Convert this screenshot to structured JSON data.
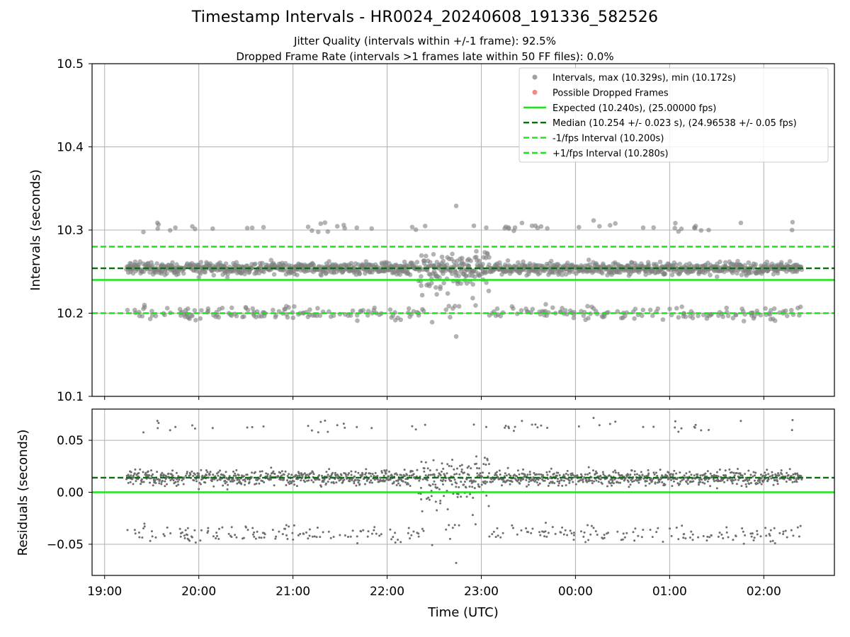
{
  "title": "Timestamp Intervals - HR0024_20240608_191336_582526",
  "subtitle_jitter": "Jitter Quality (intervals within +/-1 frame): 92.5%",
  "subtitle_dropped": "Dropped Frame Rate (intervals >1 frames late within 50 FF files): 0.0%",
  "chart_data": [
    {
      "type": "scatter",
      "panel": "top",
      "xlabel": "",
      "ylabel": "Intervals (seconds)",
      "xlim": [
        "18:52",
        "02:45"
      ],
      "ylim": [
        10.1,
        10.5
      ],
      "yticks": [
        "10.1",
        "10.2",
        "10.3",
        "10.4",
        "10.5"
      ],
      "grid": true,
      "legend_position": "upper right",
      "series": [
        {
          "name": "Intervals, max (10.329s), min (10.172s)",
          "kind": "points",
          "color": "#808080",
          "time_range": [
            "19:14",
            "02:24"
          ],
          "y_median": 10.254,
          "y_max": 10.329,
          "y_min": 10.172,
          "lower_band_center": 10.2
        },
        {
          "name": "Possible Dropped Frames",
          "kind": "points",
          "color": "#f0605a",
          "count": 0
        },
        {
          "name": "Expected (10.240s), (25.00000 fps)",
          "kind": "hline",
          "y": 10.24,
          "color": "#19e619",
          "style": "solid"
        },
        {
          "name": "Median (10.254 +/- 0.023 s), (24.96538 +/- 0.05 fps)",
          "kind": "hline",
          "y": 10.254,
          "color": "#0a6e0a",
          "style": "dashed"
        },
        {
          "name": "-1/fps Interval (10.200s)",
          "kind": "hline",
          "y": 10.2,
          "color": "#19e619",
          "style": "dashed"
        },
        {
          "name": "+1/fps Interval (10.280s)",
          "kind": "hline",
          "y": 10.28,
          "color": "#19e619",
          "style": "dashed"
        }
      ]
    },
    {
      "type": "scatter",
      "panel": "bottom",
      "xlabel": "Time (UTC)",
      "ylabel": "Residuals (seconds)",
      "xlim": [
        "18:52",
        "02:45"
      ],
      "ylim": [
        -0.08,
        0.08
      ],
      "yticks": [
        "−0.05",
        "0.00",
        "0.05"
      ],
      "grid": true,
      "series": [
        {
          "name": "Residuals",
          "kind": "points",
          "color": "#707070",
          "time_range": [
            "19:14",
            "02:24"
          ],
          "y_median": 0.014,
          "y_max": 0.089,
          "y_min": -0.068
        },
        {
          "name": "Zero",
          "kind": "hline",
          "y": 0.0,
          "color": "#19e619",
          "style": "solid"
        },
        {
          "name": "Median residual",
          "kind": "hline",
          "y": 0.014,
          "color": "#0a6e0a",
          "style": "dashed"
        }
      ]
    }
  ],
  "x_tick_labels": [
    "19:00",
    "20:00",
    "21:00",
    "22:00",
    "23:00",
    "00:00",
    "01:00",
    "02:00"
  ]
}
